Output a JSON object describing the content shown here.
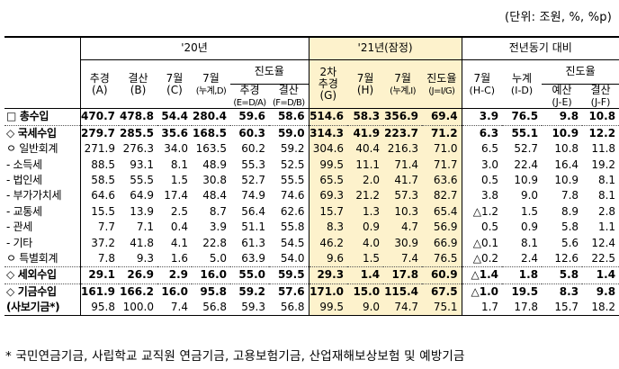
{
  "unit_label": "(단위: 조원, %, %p)",
  "headers": {
    "group_2020": "'20년",
    "group_2021": "'21년(잠정)",
    "group_yoy": "전년동기 대비",
    "progress_label": "진도율",
    "c2020": [
      {
        "l1": "추경",
        "l2": "(A)"
      },
      {
        "l1": "결산",
        "l2": "(B)"
      },
      {
        "l1": "7월",
        "l2": "(C)"
      },
      {
        "l1": "7월",
        "l2": "(누계,D)"
      }
    ],
    "c2020_prog": [
      {
        "l1": "추경",
        "l2": "(E=D/A)"
      },
      {
        "l1": "결산",
        "l2": "(F=D/B)"
      }
    ],
    "c2021": [
      {
        "l1": "2차",
        "l2": "추경",
        "l3": "(G)"
      },
      {
        "l1": "7월",
        "l2": "(H)"
      },
      {
        "l1": "7월",
        "l2": "(누계,I)"
      },
      {
        "l1": "진도율",
        "l2": "(J=I/G)"
      }
    ],
    "cyoy": [
      {
        "l1": "7월",
        "l2": "(H-C)"
      },
      {
        "l1": "누계",
        "l2": "(I-D)"
      }
    ],
    "cyoy_prog": [
      {
        "l1": "예산",
        "l2": "(J-E)"
      },
      {
        "l1": "결산",
        "l2": "(J-F)"
      }
    ]
  },
  "rows": [
    {
      "label": "□ 총수입",
      "bold": true,
      "v": [
        "470.7",
        "478.8",
        "54.4",
        "280.4",
        "59.6",
        "58.6",
        "514.6",
        "58.3",
        "356.9",
        "69.4",
        "3.9",
        "76.5",
        "9.8",
        "10.8"
      ]
    },
    {
      "label": "◇ 국세수입",
      "bold": true,
      "v": [
        "279.7",
        "285.5",
        "35.6",
        "168.5",
        "60.3",
        "59.0",
        "314.3",
        "41.9",
        "223.7",
        "71.2",
        "6.3",
        "55.1",
        "10.9",
        "12.2"
      ]
    },
    {
      "label": "ㅇ 일반회계",
      "bold": false,
      "v": [
        "271.9",
        "276.3",
        "34.0",
        "163.5",
        "60.2",
        "59.2",
        "304.6",
        "40.4",
        "216.3",
        "71.0",
        "6.5",
        "52.7",
        "10.8",
        "11.8"
      ]
    },
    {
      "label": "- 소득세",
      "bold": false,
      "v": [
        "88.5",
        "93.1",
        "8.1",
        "48.9",
        "55.3",
        "52.5",
        "99.5",
        "11.1",
        "71.4",
        "71.7",
        "3.0",
        "22.4",
        "16.4",
        "19.2"
      ]
    },
    {
      "label": "- 법인세",
      "bold": false,
      "v": [
        "58.5",
        "55.5",
        "1.5",
        "30.8",
        "52.7",
        "55.5",
        "65.5",
        "2.0",
        "41.7",
        "63.6",
        "0.5",
        "10.9",
        "10.9",
        "8.1"
      ]
    },
    {
      "label": "- 부가가치세",
      "bold": false,
      "v": [
        "64.6",
        "64.9",
        "17.4",
        "48.4",
        "74.9",
        "74.6",
        "69.3",
        "21.2",
        "57.3",
        "82.7",
        "3.8",
        "9.0",
        "7.8",
        "8.1"
      ]
    },
    {
      "label": "- 교통세",
      "bold": false,
      "v": [
        "15.5",
        "13.9",
        "2.5",
        "8.7",
        "56.4",
        "62.6",
        "15.7",
        "1.3",
        "10.3",
        "65.4",
        "△1.2",
        "1.5",
        "8.9",
        "2.8"
      ]
    },
    {
      "label": "- 관세",
      "bold": false,
      "v": [
        "7.7",
        "7.1",
        "0.4",
        "3.9",
        "51.1",
        "55.8",
        "8.3",
        "0.9",
        "4.7",
        "56.9",
        "0.5",
        "0.9",
        "5.8",
        "1.1"
      ]
    },
    {
      "label": "- 기타",
      "bold": false,
      "v": [
        "37.2",
        "41.8",
        "4.1",
        "22.8",
        "61.3",
        "54.5",
        "46.2",
        "4.0",
        "30.9",
        "66.9",
        "△0.1",
        "8.1",
        "5.6",
        "12.4"
      ]
    },
    {
      "label": "ㅇ 특별회계",
      "bold": false,
      "v": [
        "7.8",
        "9.3",
        "1.6",
        "5.0",
        "63.9",
        "54.0",
        "9.6",
        "1.5",
        "7.4",
        "76.5",
        "△0.2",
        "2.4",
        "12.6",
        "22.5"
      ]
    },
    {
      "label": "◇ 세외수입",
      "bold": true,
      "v": [
        "29.1",
        "26.9",
        "2.9",
        "16.0",
        "55.0",
        "59.5",
        "29.3",
        "1.4",
        "17.8",
        "60.9",
        "△1.4",
        "1.8",
        "5.8",
        "1.4"
      ]
    },
    {
      "label": "◇ 기금수입",
      "bold": true,
      "v": [
        "161.9",
        "166.2",
        "16.0",
        "95.8",
        "59.2",
        "57.6",
        "171.0",
        "15.0",
        "115.4",
        "67.5",
        "△1.0",
        "19.5",
        "8.3",
        "9.8"
      ]
    },
    {
      "label": "(사보기금*)",
      "bold": true,
      "labelOnly": true,
      "v": [
        "95.8",
        "100.0",
        "7.4",
        "56.8",
        "59.3",
        "56.8",
        "99.5",
        "9.0",
        "74.7",
        "75.1",
        "1.7",
        "17.8",
        "15.7",
        "18.2"
      ]
    }
  ],
  "footnote": "* 국민연금기금, 사립학교 교직원 연금기금, 고용보험기금, 산업재해보상보험 및 예방기금"
}
